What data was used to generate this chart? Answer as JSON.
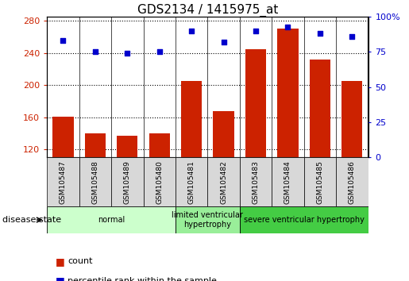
{
  "title": "GDS2134 / 1415975_at",
  "samples": [
    "GSM105487",
    "GSM105488",
    "GSM105489",
    "GSM105480",
    "GSM105481",
    "GSM105482",
    "GSM105483",
    "GSM105484",
    "GSM105485",
    "GSM105486"
  ],
  "counts": [
    161,
    140,
    137,
    140,
    205,
    168,
    245,
    270,
    232,
    205
  ],
  "percentiles": [
    83,
    75,
    74,
    75,
    90,
    82,
    90,
    93,
    88,
    86
  ],
  "ylim_left": [
    110,
    285
  ],
  "ylim_right": [
    0,
    100
  ],
  "yticks_left": [
    120,
    160,
    200,
    240,
    280
  ],
  "yticks_right": [
    0,
    25,
    50,
    75,
    100
  ],
  "bar_color": "#cc2200",
  "dot_color": "#0000cc",
  "grid_color": "#000000",
  "bg_color": "#ffffff",
  "groups": [
    {
      "label": "normal",
      "start": 0,
      "end": 3,
      "color": "#ccffcc"
    },
    {
      "label": "limited ventricular\nhypertrophy",
      "start": 4,
      "end": 5,
      "color": "#99ee99"
    },
    {
      "label": "severe ventricular hypertrophy",
      "start": 6,
      "end": 9,
      "color": "#44cc44"
    }
  ],
  "legend_items": [
    {
      "label": "count",
      "color": "#cc2200"
    },
    {
      "label": "percentile rank within the sample",
      "color": "#0000cc"
    }
  ],
  "disease_state_label": "disease state",
  "title_fontsize": 11,
  "tick_fontsize": 8,
  "sample_fontsize": 6.5,
  "group_fontsize": 7,
  "legend_fontsize": 8
}
